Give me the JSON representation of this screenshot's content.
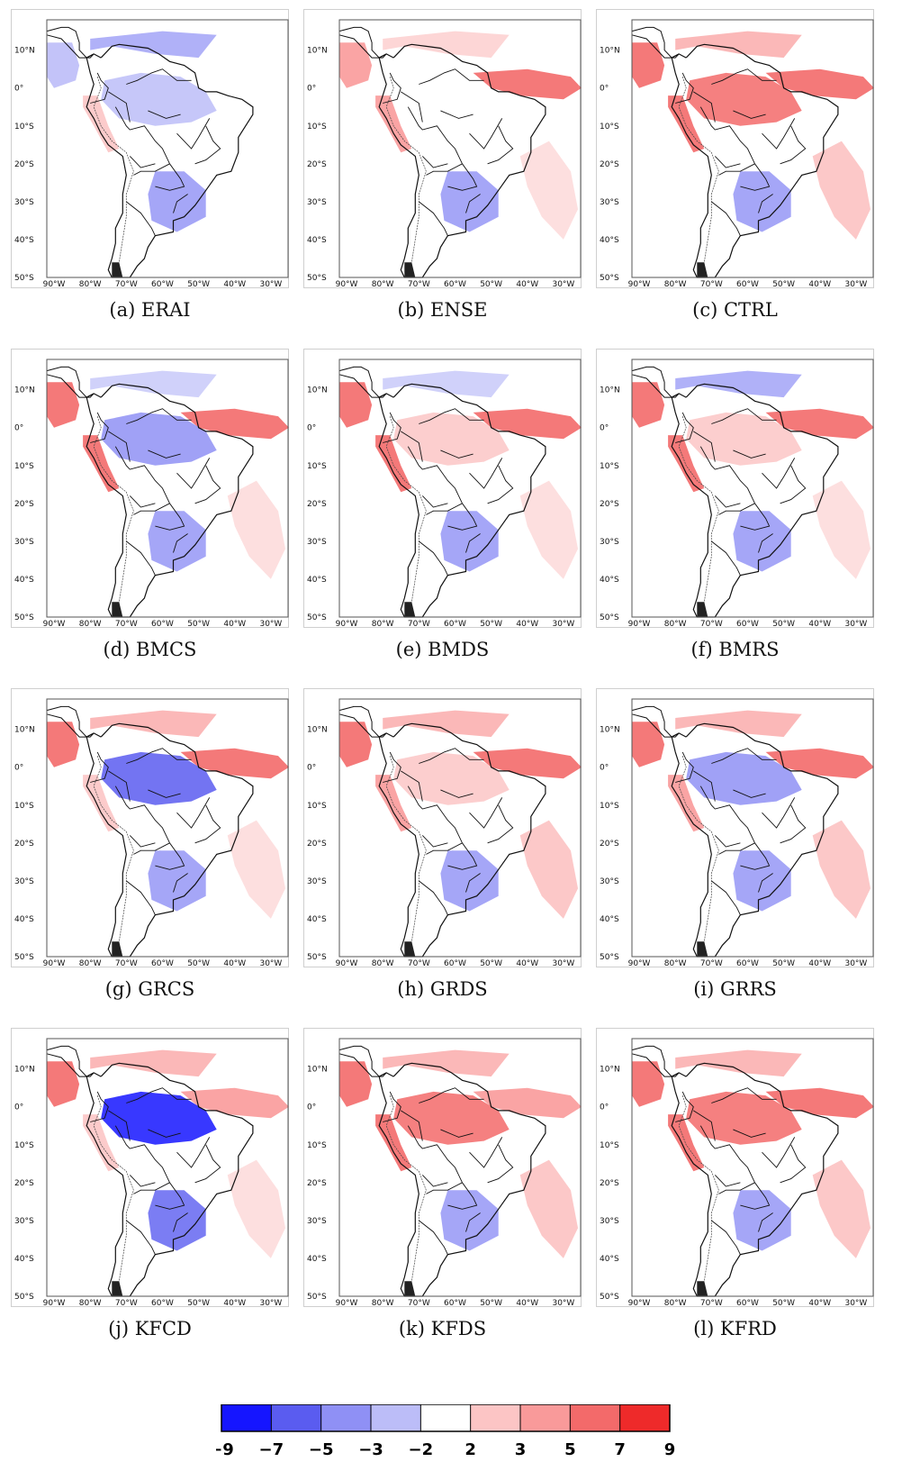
{
  "figure": {
    "panels": [
      {
        "id": "a",
        "caption": "(a) ERAI",
        "pattern": {
          "n_tropics": -2,
          "amazon": -1,
          "itcz": 0,
          "peru": 1,
          "se_brazil": -2,
          "south_atl": 0,
          "ne_pacific": -1
        }
      },
      {
        "id": "b",
        "caption": "(b) ENSE",
        "pattern": {
          "n_tropics": 1,
          "amazon": 0,
          "itcz": 3,
          "peru": 2,
          "se_brazil": -2,
          "south_atl": 1,
          "ne_pacific": 2
        }
      },
      {
        "id": "c",
        "caption": "(c) CTRL",
        "pattern": {
          "n_tropics": 2,
          "amazon": 3,
          "itcz": 3,
          "peru": 3,
          "se_brazil": -2,
          "south_atl": 2,
          "ne_pacific": 3
        }
      },
      {
        "id": "d",
        "caption": "(d) BMCS",
        "pattern": {
          "n_tropics": -1,
          "amazon": -2,
          "itcz": 3,
          "peru": 3,
          "se_brazil": -2,
          "south_atl": 1,
          "ne_pacific": 3
        }
      },
      {
        "id": "e",
        "caption": "(e) BMDS",
        "pattern": {
          "n_tropics": -1,
          "amazon": 1,
          "itcz": 3,
          "peru": 3,
          "se_brazil": -2,
          "south_atl": 1,
          "ne_pacific": 3
        }
      },
      {
        "id": "f",
        "caption": "(f) BMRS",
        "pattern": {
          "n_tropics": -2,
          "amazon": 1,
          "itcz": 3,
          "peru": 3,
          "se_brazil": -2,
          "south_atl": 1,
          "ne_pacific": 3
        }
      },
      {
        "id": "g",
        "caption": "(g) GRCS",
        "pattern": {
          "n_tropics": 2,
          "amazon": -3,
          "itcz": 3,
          "peru": 1,
          "se_brazil": -2,
          "south_atl": 1,
          "ne_pacific": 3
        }
      },
      {
        "id": "h",
        "caption": "(h) GRDS",
        "pattern": {
          "n_tropics": 2,
          "amazon": 1,
          "itcz": 3,
          "peru": 2,
          "se_brazil": -2,
          "south_atl": 2,
          "ne_pacific": 3
        }
      },
      {
        "id": "i",
        "caption": "(i) GRRS",
        "pattern": {
          "n_tropics": 2,
          "amazon": -2,
          "itcz": 3,
          "peru": 2,
          "se_brazil": -2,
          "south_atl": 2,
          "ne_pacific": 3
        }
      },
      {
        "id": "j",
        "caption": "(j) KFCD",
        "pattern": {
          "n_tropics": 2,
          "amazon": -4,
          "itcz": 2,
          "peru": 1,
          "se_brazil": -3,
          "south_atl": 1,
          "ne_pacific": 3
        }
      },
      {
        "id": "k",
        "caption": "(k) KFDS",
        "pattern": {
          "n_tropics": 2,
          "amazon": 3,
          "itcz": 2,
          "peru": 3,
          "se_brazil": -2,
          "south_atl": 2,
          "ne_pacific": 3
        }
      },
      {
        "id": "l",
        "caption": "(l) KFRD",
        "pattern": {
          "n_tropics": 2,
          "amazon": 3,
          "itcz": 3,
          "peru": 3,
          "se_brazil": -2,
          "south_atl": 2,
          "ne_pacific": 3
        }
      }
    ],
    "lat_ticks": [
      "10°N",
      "0°",
      "10°S",
      "20°S",
      "30°S",
      "40°S",
      "50°S"
    ],
    "lon_ticks": [
      "90°W",
      "80°W",
      "70°W",
      "60°W",
      "50°W",
      "40°W",
      "30°W"
    ],
    "colorbar": {
      "tick_labels": [
        "-9",
        "-7",
        "-5",
        "-3",
        "-2",
        "2",
        "3",
        "5",
        "7",
        "9"
      ],
      "colors": [
        "#1515ff",
        "#5a5cf0",
        "#8f90f5",
        "#bcbdf8",
        "#ffffff",
        "#fcc5c5",
        "#f99a9a",
        "#f36a6a",
        "#ee2a2a"
      ]
    },
    "colors": {
      "land_line": "#111111",
      "frame": "#555555"
    }
  }
}
